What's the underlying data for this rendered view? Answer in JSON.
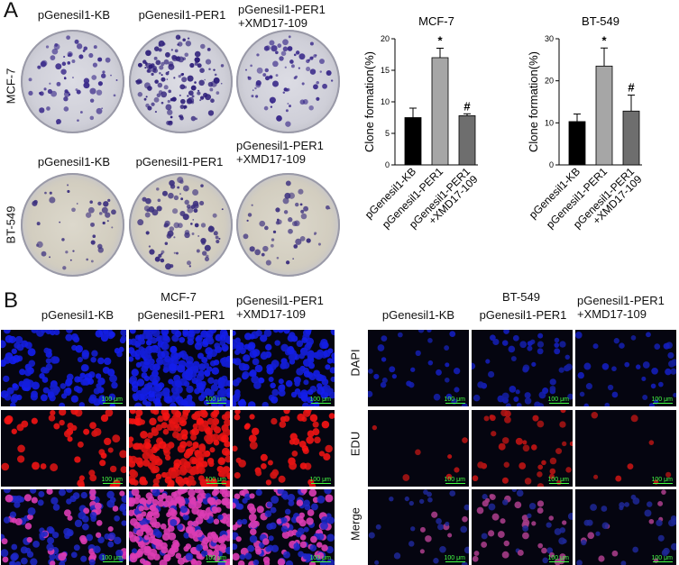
{
  "panel_a": {
    "letter": "A",
    "col_labels_top": [
      "pGenesil1-KB",
      "pGenesil1-PER1",
      "pGenesil1-PER1",
      "+XMD17-109"
    ],
    "col_labels_bottom": [
      "pGenesil1-KB",
      "pGenesil1-PER1",
      "pGenesil1-PER1",
      "+XMD17-109"
    ],
    "row_labels": [
      "MCF-7",
      "BT-549"
    ]
  },
  "panel_b": {
    "letter": "B",
    "mcf_title": "MCF-7",
    "bt_title": "BT-549",
    "col_labels": [
      "pGenesil1-KB",
      "pGenesil1-PER1",
      "pGenesil1-PER1",
      "+XMD17-109"
    ],
    "row_labels": [
      "DAPI",
      "EDU",
      "Merge"
    ],
    "scale_label": "100 μm"
  },
  "chart_data": [
    {
      "type": "bar",
      "title": "MCF-7",
      "ylabel": "Clone formation(%)",
      "categories": [
        "pGenesil1-KB",
        "pGenesil1-PER1",
        "pGenesil1-PER1 +XMD17-109"
      ],
      "values": [
        7.5,
        17.0,
        7.8
      ],
      "errors": [
        1.5,
        1.5,
        0.3
      ],
      "annotations": [
        "",
        "*",
        "#"
      ],
      "colors": [
        "#000000",
        "#a6a6a6",
        "#6e6e6e"
      ],
      "yticks": [
        0,
        5,
        10,
        15,
        20
      ],
      "ylim": [
        0,
        20
      ]
    },
    {
      "type": "bar",
      "title": "BT-549",
      "ylabel": "Clone formation(%)",
      "categories": [
        "pGenesil1-KB",
        "pGenesil1-PER1",
        "pGenesil1-PER1 +XMD17-109"
      ],
      "values": [
        10.3,
        23.5,
        12.8
      ],
      "errors": [
        1.8,
        4.3,
        3.8
      ],
      "annotations": [
        "",
        "*",
        "#"
      ],
      "colors": [
        "#000000",
        "#a6a6a6",
        "#6e6e6e"
      ],
      "yticks": [
        0,
        10,
        20,
        30
      ],
      "ylim": [
        0,
        30
      ]
    }
  ]
}
